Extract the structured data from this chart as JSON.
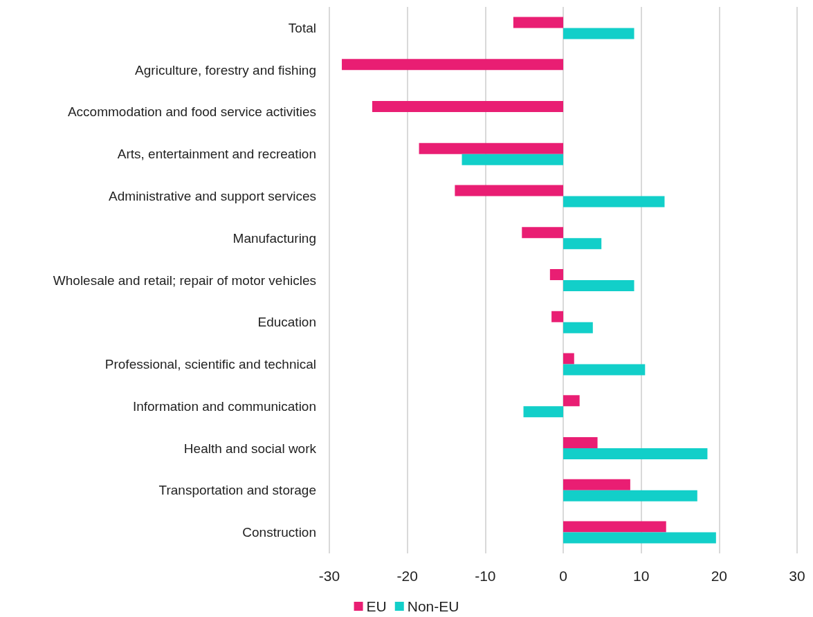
{
  "chart_data": {
    "type": "bar",
    "orientation": "horizontal",
    "categories": [
      "Total",
      "Agriculture, forestry and fishing",
      "Accommodation and food service activities",
      "Arts, entertainment and recreation",
      "Administrative and support services",
      "Manufacturing",
      "Wholesale and retail; repair of motor vehicles",
      "Education",
      "Professional, scientific and technical",
      "Information and communication",
      "Health and social work",
      "Transportation and storage",
      "Construction"
    ],
    "series": [
      {
        "name": "EU",
        "color": "#e91e73",
        "values": [
          -6.4,
          -28.4,
          -24.5,
          -18.5,
          -13.9,
          -5.3,
          -1.7,
          -1.5,
          1.4,
          2.1,
          4.4,
          8.6,
          13.2
        ]
      },
      {
        "name": "Non-EU",
        "color": "#12cfc9",
        "values": [
          9.1,
          null,
          null,
          -13.0,
          13.0,
          4.9,
          9.1,
          3.8,
          10.5,
          -5.1,
          18.5,
          17.2,
          19.6
        ]
      }
    ],
    "xlim": [
      -30,
      30
    ],
    "xticks": [
      -30,
      -20,
      -10,
      0,
      10,
      20,
      30
    ],
    "grid": "x",
    "legend": "bottom"
  }
}
